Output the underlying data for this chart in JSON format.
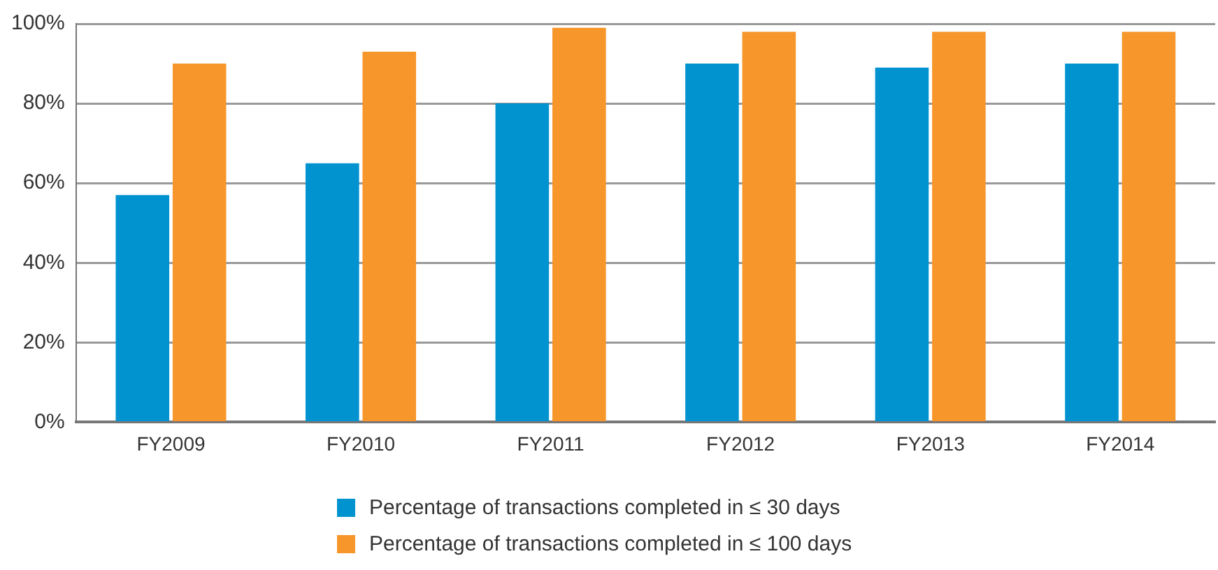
{
  "chart_data": {
    "type": "bar",
    "categories": [
      "FY2009",
      "FY2010",
      "FY2011",
      "FY2012",
      "FY2013",
      "FY2014"
    ],
    "series": [
      {
        "name": "Percentage of transactions completed in ≤ 30 days",
        "color": "#0093d0",
        "values": [
          57,
          65,
          80,
          90,
          89,
          90
        ]
      },
      {
        "name": "Percentage of transactions completed in ≤ 100 days",
        "color": "#f7962a",
        "values": [
          90,
          93,
          99,
          98,
          98,
          98
        ]
      }
    ],
    "ylim": [
      0,
      100
    ],
    "yticks": [
      {
        "value": 0,
        "label": "0%"
      },
      {
        "value": 20,
        "label": "20%"
      },
      {
        "value": 40,
        "label": "40%"
      },
      {
        "value": 60,
        "label": "60%"
      },
      {
        "value": 80,
        "label": "80%"
      },
      {
        "value": 100,
        "label": "100%"
      }
    ],
    "grid": "y",
    "legend": "bottom"
  }
}
